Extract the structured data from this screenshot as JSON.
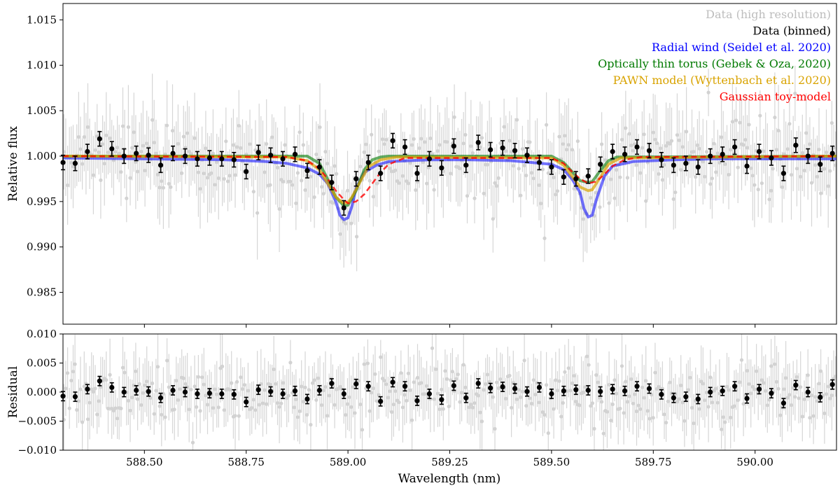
{
  "chart_data": [
    {
      "panel": "top",
      "type": "line",
      "xlabel": "",
      "ylabel": "Relative flux",
      "xlim": [
        588.3,
        590.2
      ],
      "ylim": [
        0.9815,
        1.0168
      ],
      "xticks": [
        588.5,
        588.75,
        589.0,
        589.25,
        589.5,
        589.75,
        590.0
      ],
      "xtick_labels": [
        "",
        "",
        "",
        "",
        "",
        "",
        ""
      ],
      "yticks": [
        0.985,
        0.99,
        0.995,
        1.0,
        1.005,
        1.01,
        1.015
      ],
      "ytick_labels": [
        "0.985",
        "0.990",
        "0.995",
        "1.000",
        "1.005",
        "1.010",
        "1.015"
      ],
      "grid": false,
      "legend_position": "top-right",
      "legend": [
        {
          "label": "Data (high resolution)",
          "color": "#bdbdbd"
        },
        {
          "label": "Data (binned)",
          "color": "#000000"
        },
        {
          "label": "Radial wind (Seidel et al. 2020)",
          "color": "#0000ff"
        },
        {
          "label": "Optically thin torus (Gebek & Oza, 2020)",
          "color": "#007a00"
        },
        {
          "label": "PAWN model (Wyttenbach et al. 2020)",
          "color": "#d9a300"
        },
        {
          "label": "Gaussian toy-model",
          "color": "#ff0000"
        }
      ],
      "binned_series": {
        "name": "Data (binned)",
        "color": "#000000",
        "yerr": 0.0008,
        "x": [
          588.3,
          588.33,
          588.36,
          588.39,
          588.42,
          588.45,
          588.48,
          588.51,
          588.54,
          588.57,
          588.6,
          588.63,
          588.66,
          588.69,
          588.72,
          588.75,
          588.78,
          588.81,
          588.84,
          588.87,
          588.9,
          588.93,
          588.96,
          588.99,
          589.02,
          589.05,
          589.08,
          589.11,
          589.14,
          589.17,
          589.2,
          589.23,
          589.26,
          589.29,
          589.32,
          589.35,
          589.38,
          589.41,
          589.44,
          589.47,
          589.5,
          589.53,
          589.56,
          589.59,
          589.62,
          589.65,
          589.68,
          589.71,
          589.74,
          589.77,
          589.8,
          589.83,
          589.86,
          589.89,
          589.92,
          589.95,
          589.98,
          590.01,
          590.04,
          590.07,
          590.1,
          590.13,
          590.16,
          590.19
        ],
        "y": [
          0.9993,
          0.9992,
          1.0005,
          1.0019,
          1.0008,
          1.0,
          1.0003,
          1.0001,
          0.999,
          1.0003,
          1.0,
          0.9997,
          0.9998,
          0.9997,
          0.9996,
          0.9983,
          1.0004,
          1.0001,
          0.9997,
          1.0002,
          0.9984,
          0.9988,
          0.9971,
          0.9943,
          0.9975,
          0.9993,
          0.9981,
          1.0017,
          1.001,
          0.9981,
          0.9997,
          0.9987,
          1.0011,
          0.999,
          1.0015,
          1.0007,
          1.0009,
          1.0006,
          1.0001,
          0.9993,
          0.9988,
          0.9977,
          0.9975,
          0.9978,
          0.9991,
          1.0005,
          1.0002,
          1.001,
          1.0006,
          0.9996,
          0.999,
          0.9992,
          0.9988,
          1.0,
          1.0002,
          1.001,
          0.9989,
          1.0005,
          0.9998,
          0.9981,
          1.0012,
          1.0,
          0.9991,
          1.0003
        ]
      },
      "model_series": [
        {
          "name": "Radial wind (Seidel et al. 2020)",
          "color": "#0000ff",
          "opacity": 0.55,
          "width": 4,
          "dash": "",
          "x": [
            588.3,
            588.5,
            588.7,
            588.8,
            588.85,
            588.9,
            588.93,
            588.95,
            588.97,
            588.98,
            588.99,
            589.0,
            589.01,
            589.02,
            589.04,
            589.07,
            589.1,
            589.2,
            589.3,
            589.4,
            589.5,
            589.53,
            589.55,
            589.57,
            589.58,
            589.59,
            589.6,
            589.61,
            589.63,
            589.65,
            589.7,
            589.8,
            589.9,
            590.0,
            590.2
          ],
          "y": [
            0.9998,
            0.9997,
            0.9996,
            0.9994,
            0.9992,
            0.9987,
            0.998,
            0.997,
            0.995,
            0.9935,
            0.993,
            0.9932,
            0.9945,
            0.9965,
            0.9982,
            0.999,
            0.9994,
            0.9996,
            0.9996,
            0.9995,
            0.9991,
            0.9985,
            0.9975,
            0.996,
            0.9942,
            0.9933,
            0.9935,
            0.9952,
            0.9978,
            0.9989,
            0.9994,
            0.9996,
            0.9997,
            0.9997,
            0.9997
          ]
        },
        {
          "name": "Optically thin torus (Gebek & Oza, 2020)",
          "color": "#007a00",
          "opacity": 0.6,
          "width": 4,
          "dash": "",
          "x": [
            588.3,
            588.9,
            588.93,
            588.95,
            588.97,
            588.99,
            589.0,
            589.02,
            589.04,
            589.06,
            589.08,
            589.1,
            589.5,
            589.53,
            589.55,
            589.57,
            589.59,
            589.6,
            589.62,
            589.64,
            589.66,
            590.2
          ],
          "y": [
            1.0,
            1.0,
            0.9992,
            0.9975,
            0.9955,
            0.9945,
            0.9946,
            0.9962,
            0.9985,
            0.9996,
            0.9999,
            1.0,
            1.0,
            0.9993,
            0.9983,
            0.9973,
            0.9971,
            0.9972,
            0.9984,
            0.9995,
            0.9999,
            1.0
          ]
        },
        {
          "name": "PAWN model (Wyttenbach et al. 2020)",
          "color": "#d9a300",
          "opacity": 0.7,
          "width": 4,
          "dash": "",
          "x": [
            588.3,
            588.85,
            588.9,
            588.93,
            588.95,
            588.97,
            588.99,
            589.0,
            589.01,
            589.03,
            589.05,
            589.08,
            589.12,
            589.5,
            589.53,
            589.55,
            589.57,
            589.59,
            589.6,
            589.62,
            589.64,
            589.67,
            590.2
          ],
          "y": [
            1.0,
            0.9999,
            0.9995,
            0.9985,
            0.997,
            0.9955,
            0.9948,
            0.9949,
            0.9955,
            0.9972,
            0.9988,
            0.9996,
            0.9999,
            0.9998,
            0.999,
            0.9978,
            0.9966,
            0.9962,
            0.9963,
            0.9977,
            0.9991,
            0.9998,
            1.0
          ]
        },
        {
          "name": "Gaussian toy-model",
          "color": "#ff0000",
          "opacity": 0.8,
          "width": 2.5,
          "dash": "8 5",
          "x": [
            588.3,
            588.85,
            588.9,
            588.93,
            588.95,
            588.97,
            588.99,
            589.0,
            589.02,
            589.04,
            589.06,
            589.08,
            589.1,
            589.14,
            589.5,
            589.53,
            589.55,
            589.57,
            589.59,
            589.61,
            589.63,
            589.65,
            589.68,
            589.72,
            590.2
          ],
          "y": [
            1.0,
            0.9999,
            0.9995,
            0.9986,
            0.9975,
            0.9962,
            0.9952,
            0.9948,
            0.995,
            0.9958,
            0.997,
            0.9982,
            0.9991,
            0.9998,
            0.9998,
            0.9992,
            0.9983,
            0.9975,
            0.997,
            0.9972,
            0.998,
            0.9989,
            0.9996,
            0.9999,
            1.0
          ]
        }
      ]
    },
    {
      "panel": "bottom",
      "type": "scatter",
      "xlabel": "Wavelength (nm)",
      "ylabel": "Residual",
      "xlim": [
        588.3,
        590.2
      ],
      "ylim": [
        -0.01,
        0.01
      ],
      "xticks": [
        588.5,
        588.75,
        589.0,
        589.25,
        589.5,
        589.75,
        590.0
      ],
      "xtick_labels": [
        "588.50",
        "588.75",
        "589.00",
        "589.25",
        "589.50",
        "589.75",
        "590.00"
      ],
      "yticks": [
        -0.01,
        -0.005,
        0.0,
        0.005,
        0.01
      ],
      "ytick_labels": [
        "−0.010",
        "−0.005",
        "0.000",
        "0.005",
        "0.010"
      ],
      "grid": false,
      "binned_series": {
        "name": "Data (binned)",
        "color": "#000000",
        "yerr": 0.0008,
        "x": [
          588.3,
          588.33,
          588.36,
          588.39,
          588.42,
          588.45,
          588.48,
          588.51,
          588.54,
          588.57,
          588.6,
          588.63,
          588.66,
          588.69,
          588.72,
          588.75,
          588.78,
          588.81,
          588.84,
          588.87,
          588.9,
          588.93,
          588.96,
          588.99,
          589.02,
          589.05,
          589.08,
          589.11,
          589.14,
          589.17,
          589.2,
          589.23,
          589.26,
          589.29,
          589.32,
          589.35,
          589.38,
          589.41,
          589.44,
          589.47,
          589.5,
          589.53,
          589.56,
          589.59,
          589.62,
          589.65,
          589.68,
          589.71,
          589.74,
          589.77,
          589.8,
          589.83,
          589.86,
          589.89,
          589.92,
          589.95,
          589.98,
          590.01,
          590.04,
          590.07,
          590.1,
          590.13,
          590.16,
          590.19
        ],
        "y": [
          -0.0007,
          -0.0008,
          0.0005,
          0.0019,
          0.0008,
          0.0,
          0.0003,
          0.0001,
          -0.001,
          0.0003,
          0.0,
          -0.0003,
          -0.0002,
          -0.0003,
          -0.0004,
          -0.0017,
          0.0004,
          0.0001,
          -0.0003,
          0.0002,
          -0.0012,
          0.0003,
          0.0015,
          -0.0003,
          0.0014,
          0.001,
          -0.0016,
          0.0017,
          0.001,
          -0.0015,
          -0.0003,
          -0.0013,
          0.0011,
          -0.001,
          0.0015,
          0.0007,
          0.0009,
          0.0006,
          0.0001,
          0.0008,
          -0.0003,
          0.0002,
          0.0004,
          0.0003,
          0.0001,
          0.0005,
          0.0002,
          0.001,
          0.0006,
          -0.0004,
          -0.001,
          -0.0008,
          -0.0012,
          0.0,
          0.0002,
          0.001,
          -0.0011,
          0.0005,
          -0.0002,
          -0.0019,
          0.0012,
          0.0,
          -0.0009,
          0.0013
        ]
      }
    }
  ]
}
